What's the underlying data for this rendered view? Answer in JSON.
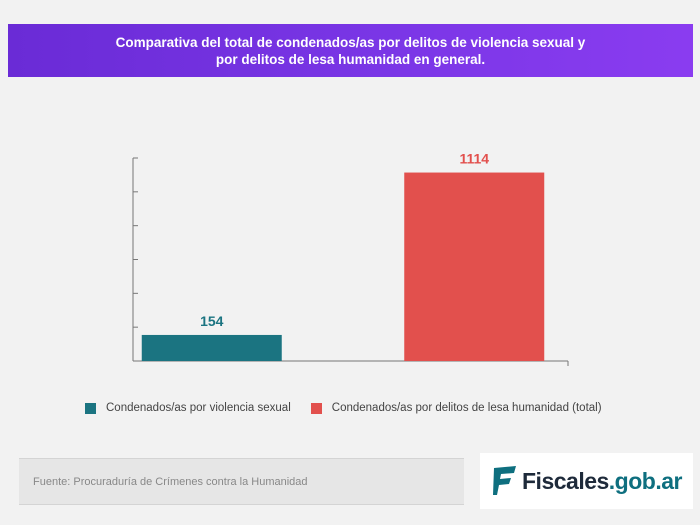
{
  "header": {
    "title_line1": "Comparativa del total de condenados/as por delitos de violencia sexual y",
    "title_line2": "por delitos de lesa humanidad en general."
  },
  "chart_data": {
    "type": "bar",
    "categories": [
      "Condenados/as por violencia sexual",
      "Condenados/as por delitos de lesa humanidad (total)"
    ],
    "values": [
      154,
      1114
    ],
    "value_labels": [
      "154",
      "1114"
    ],
    "colors": [
      "#1b7481",
      "#e2504d"
    ],
    "ylim": [
      0,
      1200
    ],
    "y_ticks": [
      0,
      200,
      400,
      600,
      800,
      1000,
      1200
    ],
    "grid": false,
    "legend_position": "bottom"
  },
  "legend": {
    "items": [
      {
        "label": "Condenados/as por violencia sexual",
        "color": "#1b7481"
      },
      {
        "label": "Condenados/as por delitos de lesa humanidad (total)",
        "color": "#e2504d"
      }
    ]
  },
  "footer": {
    "source": "Fuente: Procuraduría de Crímenes contra la Humanidad"
  },
  "logo": {
    "name": "Fiscales",
    "suffix": ".gob.ar",
    "icon": "fiscales-logo-icon"
  }
}
